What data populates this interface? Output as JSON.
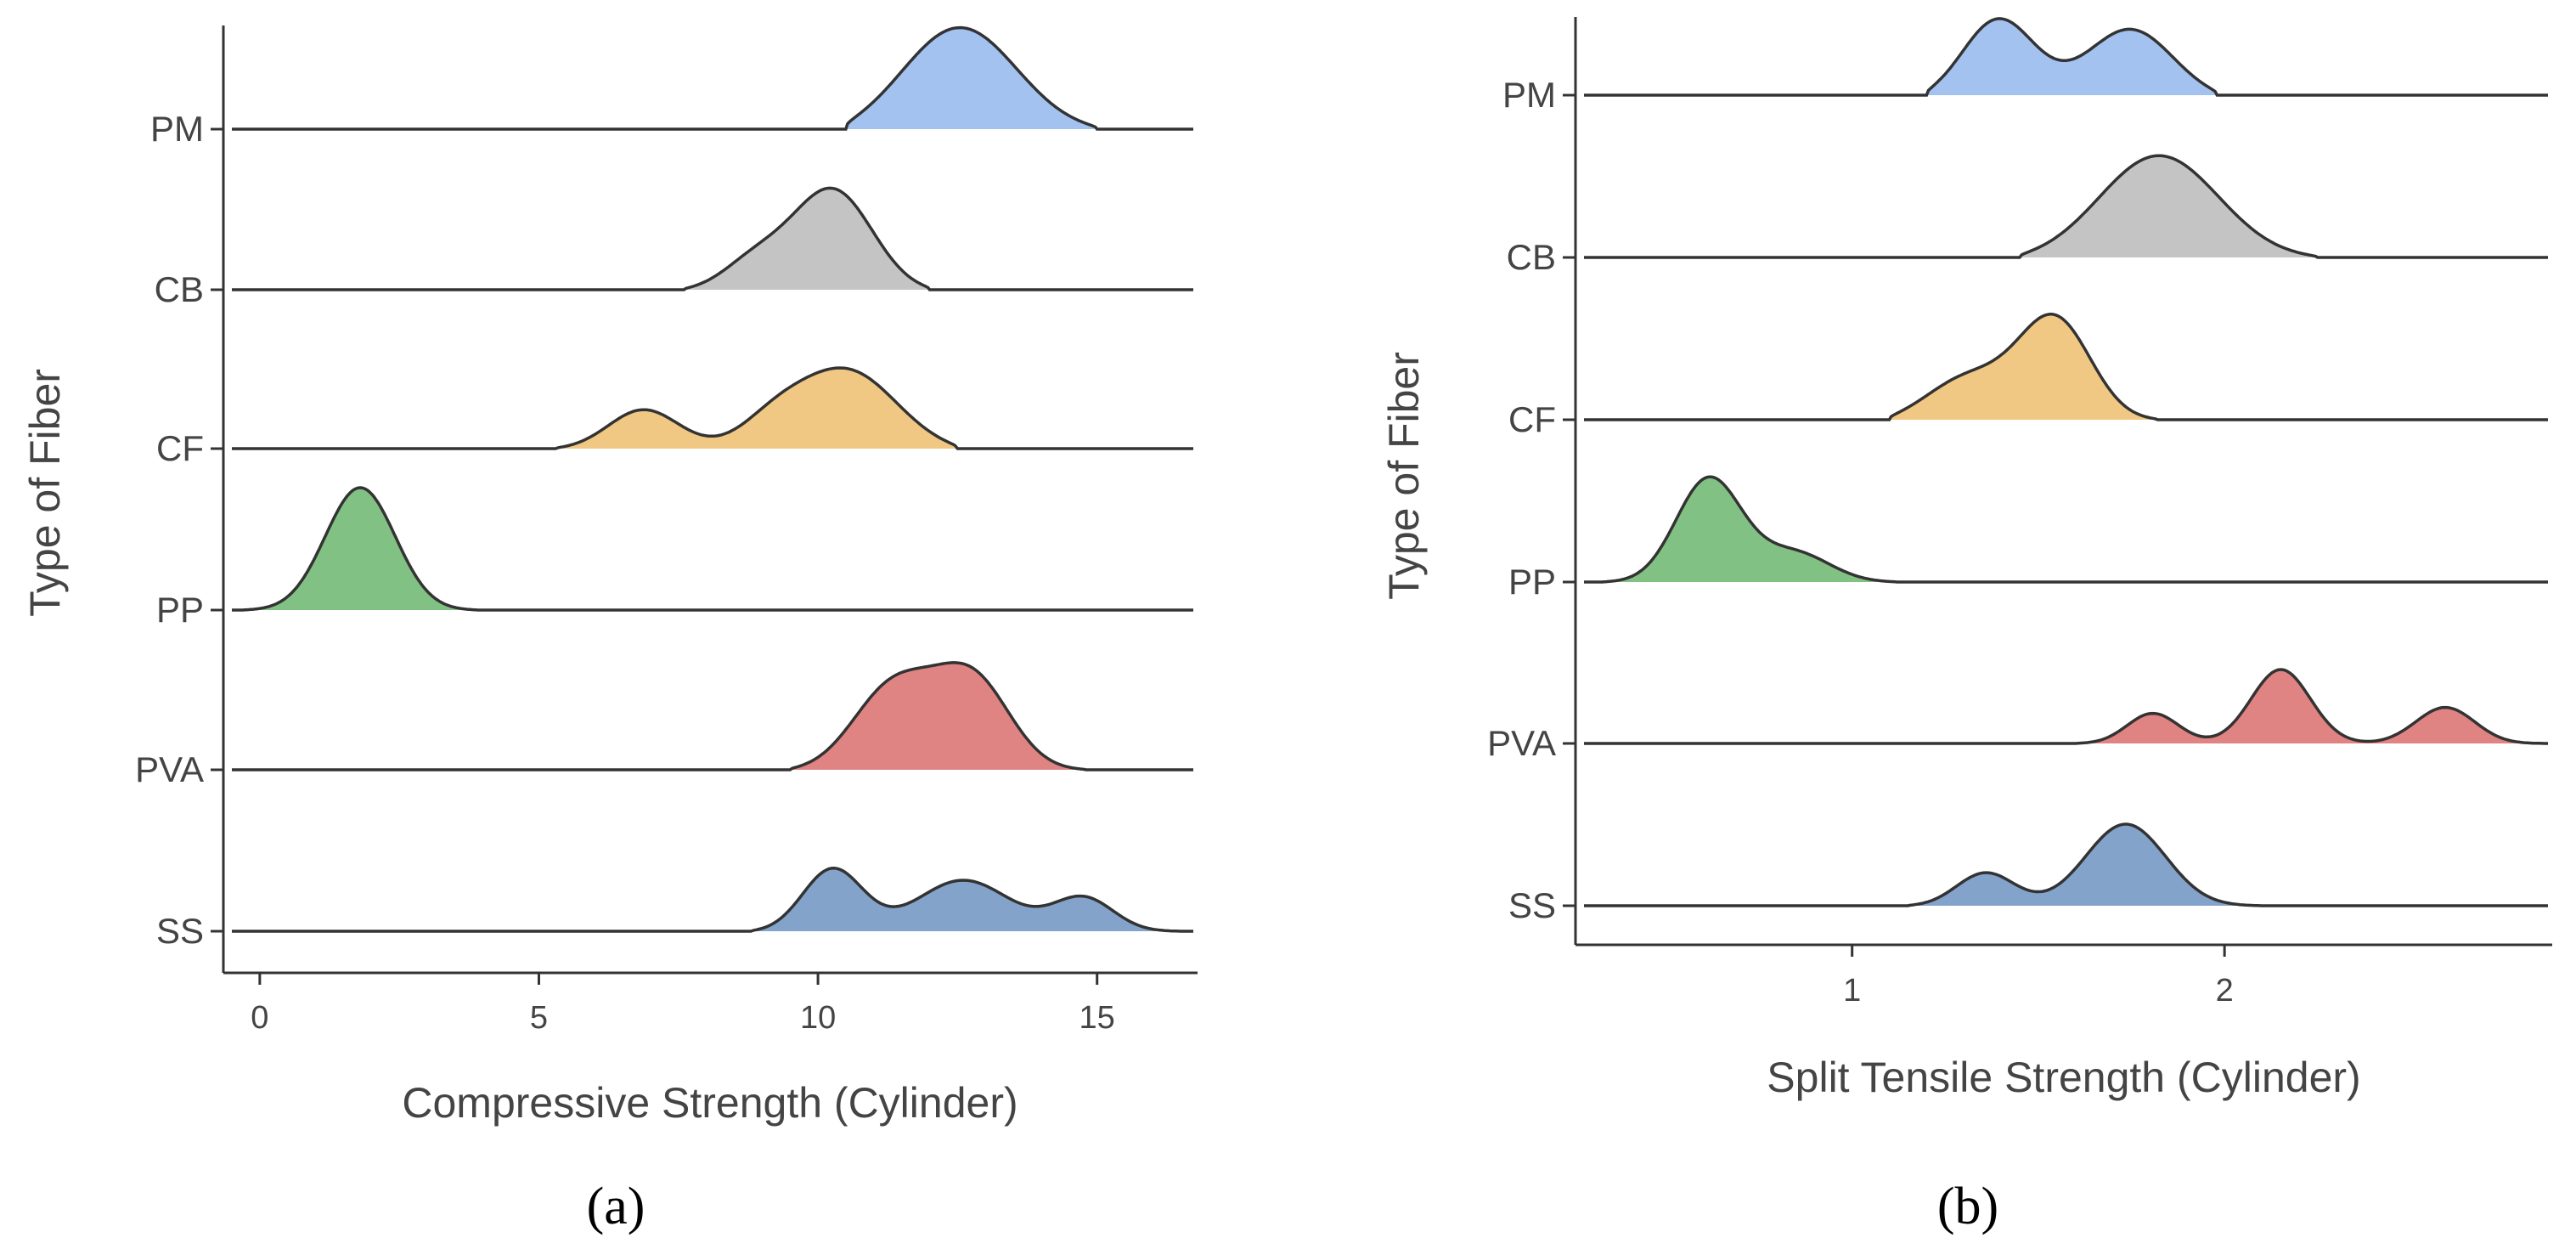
{
  "figure": {
    "panel_labels": [
      "(a)",
      "(b)"
    ]
  },
  "colors": {
    "PM": "#a3c2f0",
    "CB": "#c4c4c4",
    "CF": "#f0c883",
    "PP": "#82c184",
    "PVA": "#df8482",
    "SS": "#84a3ca"
  },
  "chart_data": [
    {
      "type": "ridgeline",
      "panel": "(a)",
      "xlabel": "Compressive Strength (Cylinder)",
      "ylabel": "Type of Fiber",
      "xlim": [
        -0.5,
        16.8
      ],
      "xticks": [
        0,
        5,
        10,
        15
      ],
      "xtick_labels": [
        "0",
        "5",
        "10",
        "15"
      ],
      "categories": [
        "PM",
        "CB",
        "CF",
        "PP",
        "PVA",
        "SS"
      ],
      "series": [
        {
          "name": "PM",
          "range": [
            10.5,
            15.0
          ],
          "components": [
            {
              "mu": 12.5,
              "sigma": 1.1,
              "h": 1.0
            }
          ]
        },
        {
          "name": "CB",
          "range": [
            7.6,
            12.0
          ],
          "components": [
            {
              "mu": 10.3,
              "sigma": 0.75,
              "h": 1.0
            },
            {
              "mu": 8.8,
              "sigma": 0.6,
              "h": 0.3
            }
          ]
        },
        {
          "name": "CF",
          "range": [
            5.3,
            12.5
          ],
          "components": [
            {
              "mu": 6.8,
              "sigma": 0.65,
              "h": 0.45
            },
            {
              "mu": 10.6,
              "sigma": 0.95,
              "h": 0.85
            },
            {
              "mu": 9.2,
              "sigma": 0.6,
              "h": 0.2
            }
          ]
        },
        {
          "name": "PP",
          "range": [
            -0.3,
            3.9
          ],
          "components": [
            {
              "mu": 1.8,
              "sigma": 0.65,
              "h": 1.2
            }
          ]
        },
        {
          "name": "PVA",
          "range": [
            9.5,
            14.8
          ],
          "components": [
            {
              "mu": 11.3,
              "sigma": 0.75,
              "h": 0.85
            },
            {
              "mu": 12.8,
              "sigma": 0.7,
              "h": 0.9
            }
          ]
        },
        {
          "name": "SS",
          "range": [
            8.8,
            16.5
          ],
          "components": [
            {
              "mu": 10.2,
              "sigma": 0.55,
              "h": 0.75
            },
            {
              "mu": 12.6,
              "sigma": 0.85,
              "h": 0.5
            },
            {
              "mu": 14.8,
              "sigma": 0.55,
              "h": 0.38
            }
          ]
        }
      ]
    },
    {
      "type": "ridgeline",
      "panel": "(b)",
      "xlabel": "Split Tensile Strength (Cylinder)",
      "ylabel": "Type of Fiber",
      "xlim": [
        0.28,
        2.88
      ],
      "xticks": [
        1,
        2
      ],
      "xtick_labels": [
        "1",
        "2"
      ],
      "categories": [
        "PM",
        "CB",
        "CF",
        "PP",
        "PVA",
        "SS"
      ],
      "series": [
        {
          "name": "PM",
          "range": [
            1.2,
            1.98
          ],
          "components": [
            {
              "mu": 1.38,
              "sigma": 0.1,
              "h": 0.85
            },
            {
              "mu": 1.76,
              "sigma": 0.12,
              "h": 0.7
            }
          ]
        },
        {
          "name": "CB",
          "range": [
            1.45,
            2.25
          ],
          "components": [
            {
              "mu": 1.82,
              "sigma": 0.17,
              "h": 1.0
            }
          ]
        },
        {
          "name": "CF",
          "range": [
            1.1,
            1.82
          ],
          "components": [
            {
              "mu": 1.55,
              "sigma": 0.1,
              "h": 1.0
            },
            {
              "mu": 1.3,
              "sigma": 0.12,
              "h": 0.45
            }
          ]
        },
        {
          "name": "PP",
          "range": [
            0.33,
            1.12
          ],
          "components": [
            {
              "mu": 0.61,
              "sigma": 0.09,
              "h": 1.05
            },
            {
              "mu": 0.85,
              "sigma": 0.1,
              "h": 0.3
            }
          ]
        },
        {
          "name": "PVA",
          "range": [
            1.6,
            2.86
          ],
          "components": [
            {
              "mu": 1.8,
              "sigma": 0.07,
              "h": 0.38
            },
            {
              "mu": 2.15,
              "sigma": 0.08,
              "h": 0.73
            },
            {
              "mu": 2.6,
              "sigma": 0.08,
              "h": 0.42
            }
          ]
        },
        {
          "name": "SS",
          "range": [
            1.15,
            2.1
          ],
          "components": [
            {
              "mu": 1.35,
              "sigma": 0.08,
              "h": 0.38
            },
            {
              "mu": 1.74,
              "sigma": 0.11,
              "h": 0.82
            }
          ]
        }
      ]
    }
  ]
}
